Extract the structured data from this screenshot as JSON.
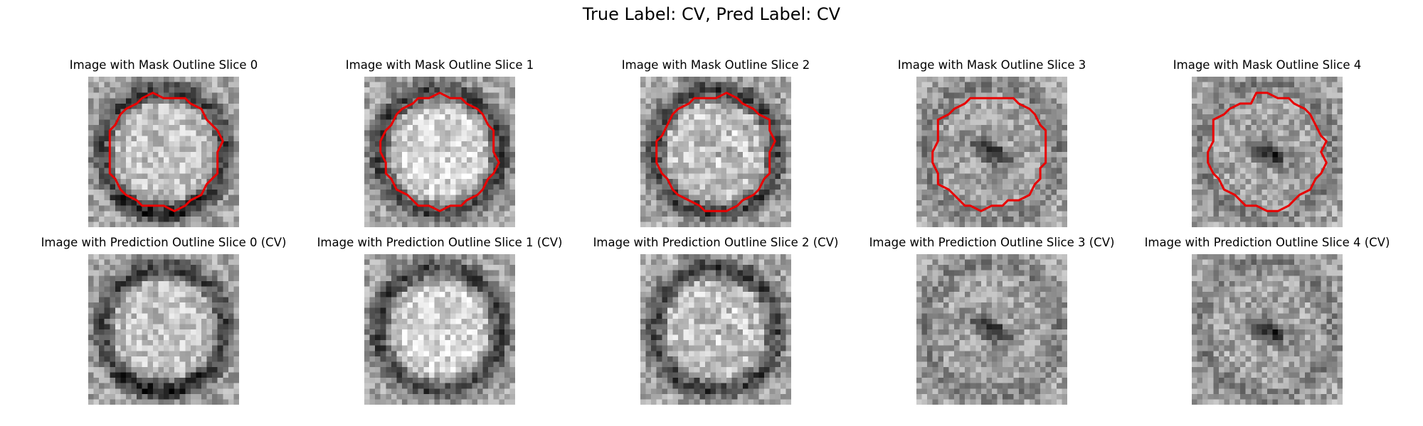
{
  "figure": {
    "suptitle": "True Label: CV, Pred Label: CV"
  },
  "colors": {
    "outline": "#e80000",
    "background": "#ffffff"
  },
  "rows": [
    {
      "kind": "mask",
      "panels": [
        {
          "title": "Image with Mask Outline Slice 0",
          "slice": 0,
          "pattern": "ring-dark-bottom",
          "outline": true
        },
        {
          "title": "Image with Mask Outline Slice 1",
          "slice": 1,
          "pattern": "ring-bright-center",
          "outline": true
        },
        {
          "title": "Image with Mask Outline Slice 2",
          "slice": 2,
          "pattern": "ring-noisy",
          "outline": true
        },
        {
          "title": "Image with Mask Outline Slice 3",
          "slice": 3,
          "pattern": "diagonal-streak",
          "outline": true
        },
        {
          "title": "Image with Mask Outline Slice 4",
          "slice": 4,
          "pattern": "diagonal-streak",
          "outline": true
        }
      ]
    },
    {
      "kind": "prediction",
      "panels": [
        {
          "title": "Image with Prediction Outline Slice 0 (CV)",
          "slice": 0,
          "pattern": "ring-dark-bottom",
          "outline": false
        },
        {
          "title": "Image with Prediction Outline Slice 1 (CV)",
          "slice": 1,
          "pattern": "ring-bright-center",
          "outline": false
        },
        {
          "title": "Image with Prediction Outline Slice 2 (CV)",
          "slice": 2,
          "pattern": "ring-noisy",
          "outline": false
        },
        {
          "title": "Image with Prediction Outline Slice 3 (CV)",
          "slice": 3,
          "pattern": "diagonal-streak",
          "outline": false
        },
        {
          "title": "Image with Prediction Outline Slice 4 (CV)",
          "slice": 4,
          "pattern": "diagonal-streak",
          "outline": false
        }
      ]
    }
  ]
}
